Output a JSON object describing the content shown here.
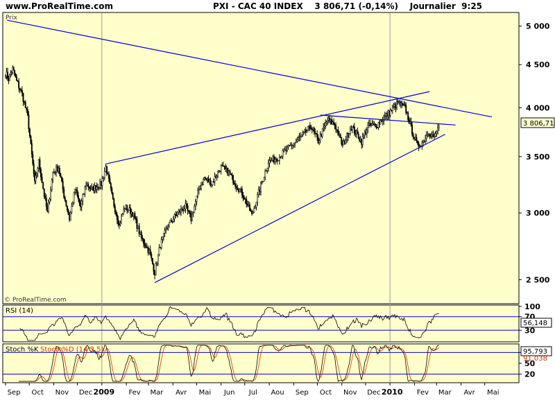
{
  "header": {
    "site": "www.ProRealTime.com",
    "title": "PXI - CAC 40 INDEX    3 806,71 (-0,14%)    Journalier  9:25"
  },
  "colors": {
    "panel_bg": "#ffffcc",
    "candles": "#000000",
    "trendlines": "#0000cc",
    "stoch_d": "#cc3300",
    "price_tag_bg": "#ffffcc"
  },
  "price_panel": {
    "label": "Prix",
    "watermark": "© ProRealTime.com",
    "last_price_label": "3 806,71"
  },
  "rsi_panel": {
    "label": "RSI (14)",
    "value_label": "56,148"
  },
  "stoch_panel": {
    "label_k": "Stoch %K",
    "label_d": "Stoch %D (14 3 5)",
    "value_label": "95,793",
    "value_label2": "91,038"
  },
  "chart_data": [
    {
      "type": "candlestick",
      "scale": "log",
      "y_ticks": [
        "5 000",
        "4 500",
        "4 000",
        "3 500",
        "3 000",
        "2 500"
      ],
      "y_tick_values": [
        5000,
        4500,
        4000,
        3500,
        3000,
        2500
      ],
      "ylim": [
        2350,
        5150
      ],
      "x_labels": [
        "Sep",
        "Oct",
        "Nov",
        "Dec",
        "2009",
        "Fev",
        "Mar",
        "Avr",
        "Mai",
        "Jun",
        "Jul",
        "Aou",
        "Sep",
        "Oct",
        "Nov",
        "Dec",
        "2010",
        "Fev",
        "Mar",
        "Avr",
        "Mai"
      ],
      "last_price": 3806.71,
      "price_path": [
        [
          "2008-09-01",
          4400
        ],
        [
          "2008-09-05",
          4330
        ],
        [
          "2008-09-10",
          4450
        ],
        [
          "2008-09-15",
          4300
        ],
        [
          "2008-09-22",
          4150
        ],
        [
          "2008-09-29",
          3900
        ],
        [
          "2008-10-03",
          3600
        ],
        [
          "2008-10-08",
          3250
        ],
        [
          "2008-10-13",
          3450
        ],
        [
          "2008-10-20",
          3150
        ],
        [
          "2008-10-24",
          3000
        ],
        [
          "2008-10-31",
          3350
        ],
        [
          "2008-11-07",
          3400
        ],
        [
          "2008-11-14",
          3150
        ],
        [
          "2008-11-21",
          2950
        ],
        [
          "2008-11-28",
          3200
        ],
        [
          "2008-12-05",
          3050
        ],
        [
          "2008-12-12",
          3250
        ],
        [
          "2008-12-19",
          3200
        ],
        [
          "2008-12-31",
          3250
        ],
        [
          "2009-01-06",
          3400
        ],
        [
          "2009-01-15",
          3100
        ],
        [
          "2009-01-23",
          2900
        ],
        [
          "2009-01-30",
          3050
        ],
        [
          "2009-02-09",
          3000
        ],
        [
          "2009-02-20",
          2800
        ],
        [
          "2009-03-02",
          2700
        ],
        [
          "2009-03-09",
          2550
        ],
        [
          "2009-03-16",
          2750
        ],
        [
          "2009-03-26",
          2900
        ],
        [
          "2009-04-07",
          3000
        ],
        [
          "2009-04-17",
          3050
        ],
        [
          "2009-04-24",
          2950
        ],
        [
          "2009-05-04",
          3200
        ],
        [
          "2009-05-11",
          3300
        ],
        [
          "2009-05-20",
          3250
        ],
        [
          "2009-06-01",
          3400
        ],
        [
          "2009-06-11",
          3350
        ],
        [
          "2009-06-19",
          3250
        ],
        [
          "2009-06-29",
          3150
        ],
        [
          "2009-07-10",
          2980
        ],
        [
          "2009-07-20",
          3200
        ],
        [
          "2009-07-31",
          3450
        ],
        [
          "2009-08-14",
          3500
        ],
        [
          "2009-08-28",
          3600
        ],
        [
          "2009-09-11",
          3700
        ],
        [
          "2009-09-23",
          3800
        ],
        [
          "2009-10-02",
          3650
        ],
        [
          "2009-10-14",
          3870
        ],
        [
          "2009-10-23",
          3820
        ],
        [
          "2009-11-02",
          3600
        ],
        [
          "2009-11-13",
          3800
        ],
        [
          "2009-11-26",
          3650
        ],
        [
          "2009-12-04",
          3800
        ],
        [
          "2009-12-16",
          3820
        ],
        [
          "2009-12-31",
          3950
        ],
        [
          "2010-01-11",
          4050
        ],
        [
          "2010-01-20",
          4000
        ],
        [
          "2010-01-29",
          3750
        ],
        [
          "2010-02-05",
          3600
        ],
        [
          "2010-02-12",
          3650
        ],
        [
          "2010-02-19",
          3750
        ],
        [
          "2010-02-26",
          3680
        ],
        [
          "2010-03-04",
          3806.71
        ]
      ],
      "trendlines": [
        [
          [
            "2008-09-03",
            5080
          ],
          [
            "2010-05-10",
            3900
          ]
        ],
        [
          [
            "2009-01-06",
            3430
          ],
          [
            "2010-02-20",
            4180
          ]
        ],
        [
          [
            "2009-03-09",
            2480
          ],
          [
            "2010-03-12",
            3720
          ]
        ],
        [
          [
            "2009-10-05",
            3920
          ],
          [
            "2010-03-25",
            3815
          ]
        ]
      ]
    },
    {
      "type": "line",
      "name": "RSI (14)",
      "y_ticks": [
        "100",
        "70",
        "30"
      ],
      "levels": [
        70,
        30
      ],
      "ylim": [
        0,
        100
      ],
      "last_value": 56.148
    },
    {
      "type": "line",
      "name": "Stoch",
      "y_ticks": [
        "80",
        "50",
        "20"
      ],
      "levels": [
        80,
        20
      ],
      "ylim": [
        0,
        100
      ],
      "last_value_k": 95.793,
      "last_value_d": 91.038
    }
  ]
}
